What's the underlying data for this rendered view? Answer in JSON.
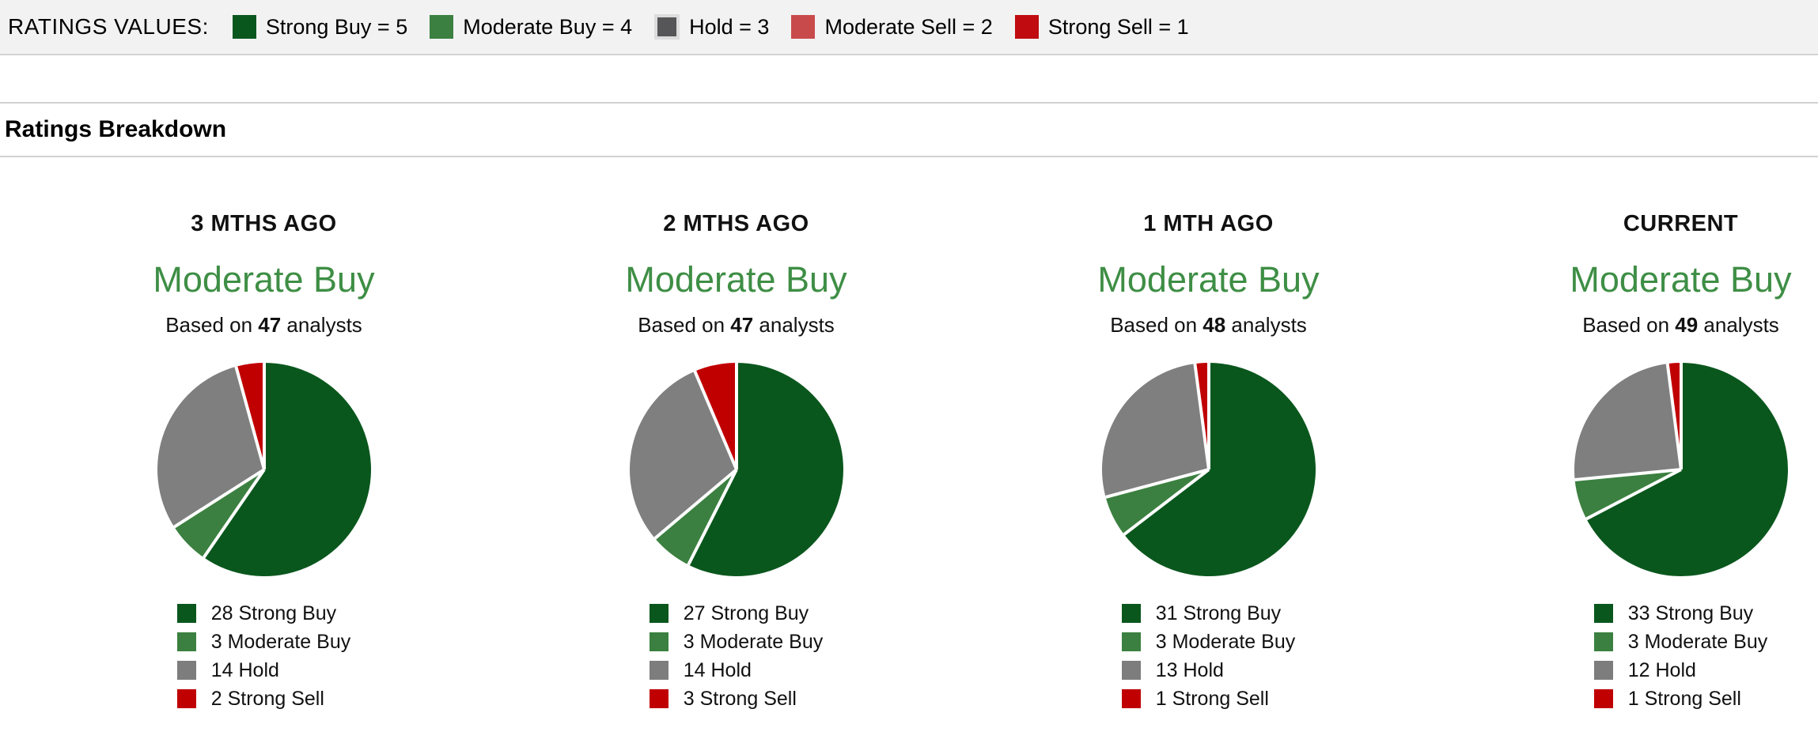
{
  "ratings_values_bar": {
    "label": "RATINGS VALUES:",
    "items": [
      {
        "name": "strong-buy",
        "label": "Strong Buy = 5",
        "color": "#0a571d",
        "outlined": false
      },
      {
        "name": "moderate-buy",
        "label": "Moderate Buy = 4",
        "color": "#3b8040",
        "outlined": false
      },
      {
        "name": "hold",
        "label": "Hold = 3",
        "color": "#565659",
        "outlined": true,
        "outline_color": "#dcdcdc"
      },
      {
        "name": "moderate-sell",
        "label": "Moderate Sell = 2",
        "color": "#c94a4b",
        "outlined": false
      },
      {
        "name": "strong-sell",
        "label": "Strong Sell = 1",
        "color": "#c00c11",
        "outlined": false
      }
    ]
  },
  "section_title": "Ratings Breakdown",
  "consensus_text_color": "#3e8e45",
  "pie_slice_separator_color": "#ffffff",
  "chart_data": [
    {
      "type": "pie",
      "title": "3 MTHS AGO",
      "consensus": "Moderate Buy",
      "total_analysts": 47,
      "labels": [
        "Strong Buy",
        "Moderate Buy",
        "Hold",
        "Strong Sell"
      ],
      "values": [
        28,
        3,
        14,
        2
      ],
      "colors": [
        "#0a571d",
        "#3b8040",
        "#7f7f7f",
        "#c00000"
      ],
      "start_angle_deg": 0,
      "direction": "clockwise"
    },
    {
      "type": "pie",
      "title": "2 MTHS AGO",
      "consensus": "Moderate Buy",
      "total_analysts": 47,
      "labels": [
        "Strong Buy",
        "Moderate Buy",
        "Hold",
        "Strong Sell"
      ],
      "values": [
        27,
        3,
        14,
        3
      ],
      "colors": [
        "#0a571d",
        "#3b8040",
        "#7f7f7f",
        "#c00000"
      ],
      "start_angle_deg": 0,
      "direction": "clockwise"
    },
    {
      "type": "pie",
      "title": "1 MTH AGO",
      "consensus": "Moderate Buy",
      "total_analysts": 48,
      "labels": [
        "Strong Buy",
        "Moderate Buy",
        "Hold",
        "Strong Sell"
      ],
      "values": [
        31,
        3,
        13,
        1
      ],
      "colors": [
        "#0a571d",
        "#3b8040",
        "#7f7f7f",
        "#c00000"
      ],
      "start_angle_deg": 0,
      "direction": "clockwise"
    },
    {
      "type": "pie",
      "title": "CURRENT",
      "consensus": "Moderate Buy",
      "total_analysts": 49,
      "labels": [
        "Strong Buy",
        "Moderate Buy",
        "Hold",
        "Strong Sell"
      ],
      "values": [
        33,
        3,
        12,
        1
      ],
      "colors": [
        "#0a571d",
        "#3b8040",
        "#7f7f7f",
        "#c00000"
      ],
      "start_angle_deg": 0,
      "direction": "clockwise"
    }
  ],
  "columns": [
    {
      "period": "3 MTHS AGO",
      "consensus": "Moderate Buy",
      "based_on": {
        "prefix": "Based on ",
        "count": "47",
        "suffix": " analysts"
      },
      "legend": [
        {
          "text": "28 Strong Buy",
          "color": "#0a571d"
        },
        {
          "text": "3 Moderate Buy",
          "color": "#3b8040"
        },
        {
          "text": "14 Hold",
          "color": "#7d7d7d"
        },
        {
          "text": "2 Strong Sell",
          "color": "#c00000"
        }
      ]
    },
    {
      "period": "2 MTHS AGO",
      "consensus": "Moderate Buy",
      "based_on": {
        "prefix": "Based on ",
        "count": "47",
        "suffix": " analysts"
      },
      "legend": [
        {
          "text": "27 Strong Buy",
          "color": "#0a571d"
        },
        {
          "text": "3 Moderate Buy",
          "color": "#3b8040"
        },
        {
          "text": "14 Hold",
          "color": "#7d7d7d"
        },
        {
          "text": "3 Strong Sell",
          "color": "#c00000"
        }
      ]
    },
    {
      "period": "1 MTH AGO",
      "consensus": "Moderate Buy",
      "based_on": {
        "prefix": "Based on ",
        "count": "48",
        "suffix": " analysts"
      },
      "legend": [
        {
          "text": "31 Strong Buy",
          "color": "#0a571d"
        },
        {
          "text": "3 Moderate Buy",
          "color": "#3b8040"
        },
        {
          "text": "13 Hold",
          "color": "#7d7d7d"
        },
        {
          "text": "1 Strong Sell",
          "color": "#c00000"
        }
      ]
    },
    {
      "period": "CURRENT",
      "consensus": "Moderate Buy",
      "based_on": {
        "prefix": "Based on ",
        "count": "49",
        "suffix": " analysts"
      },
      "legend": [
        {
          "text": "33 Strong Buy",
          "color": "#0a571d"
        },
        {
          "text": "3 Moderate Buy",
          "color": "#3b8040"
        },
        {
          "text": "12 Hold",
          "color": "#7d7d7d"
        },
        {
          "text": "1 Strong Sell",
          "color": "#c00000"
        }
      ]
    }
  ]
}
